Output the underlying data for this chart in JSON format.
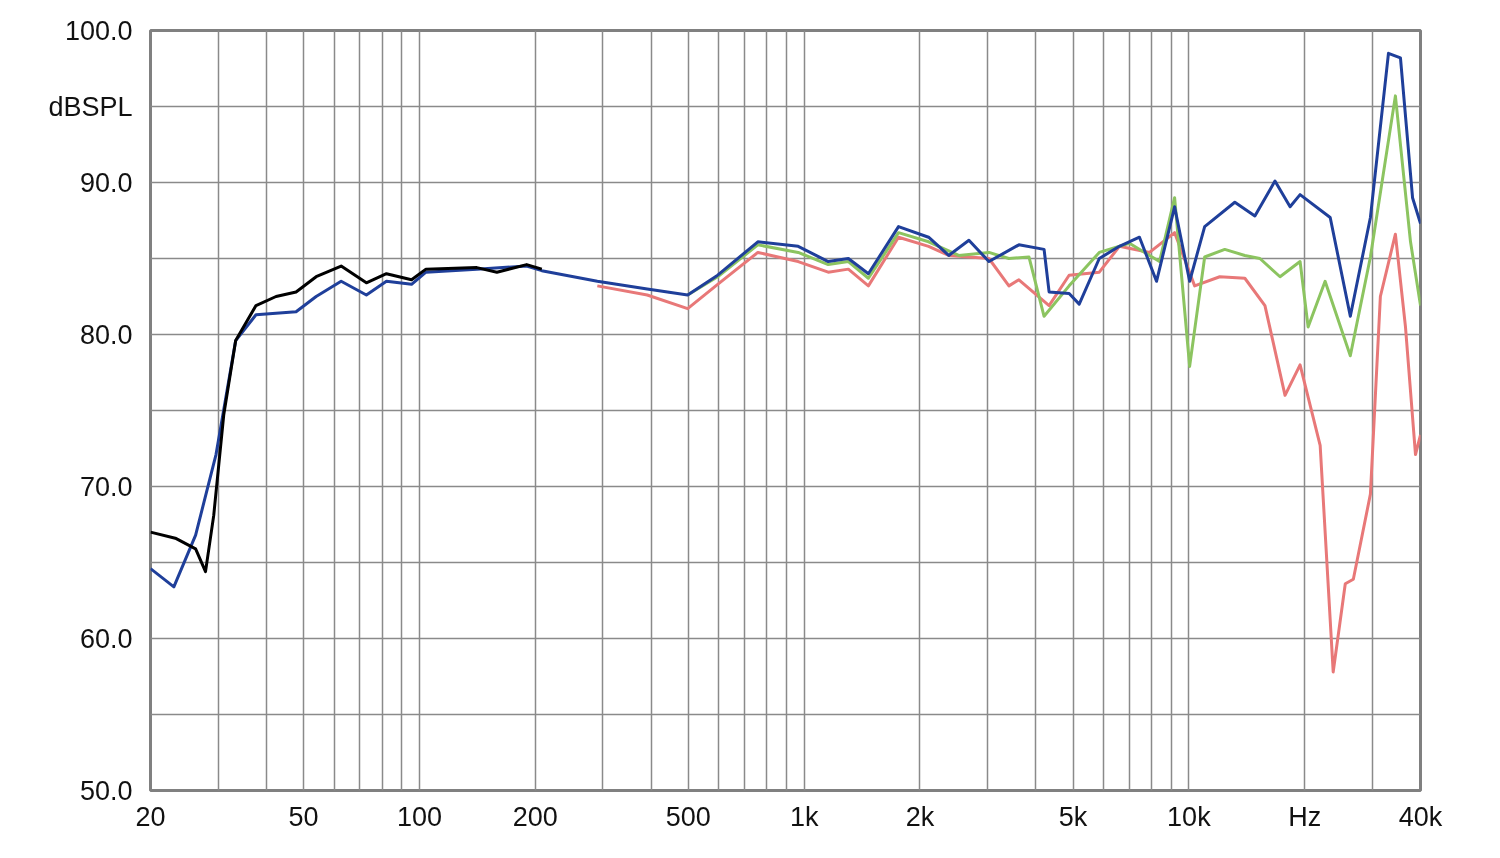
{
  "chart_data": {
    "type": "line",
    "log": "x",
    "grid": true,
    "xlim": [
      20,
      40000
    ],
    "ylim": [
      50,
      100
    ],
    "xticks": [
      20,
      {
        "value": 30,
        "label": null
      },
      {
        "value": 40,
        "label": null
      },
      50,
      {
        "value": 60,
        "label": null
      },
      {
        "value": 70,
        "label": null
      },
      {
        "value": 80,
        "label": null
      },
      {
        "value": 90,
        "label": null
      },
      100,
      200,
      {
        "value": 300,
        "label": null
      },
      {
        "value": 400,
        "label": null
      },
      500,
      {
        "value": 600,
        "label": null
      },
      {
        "value": 700,
        "label": null
      },
      {
        "value": 800,
        "label": null
      },
      {
        "value": 900,
        "label": null
      },
      {
        "value": 1000,
        "label": "1k"
      },
      {
        "value": 2000,
        "label": "2k"
      },
      {
        "value": 3000,
        "label": null
      },
      {
        "value": 4000,
        "label": null
      },
      {
        "value": 5000,
        "label": "5k"
      },
      {
        "value": 6000,
        "label": null
      },
      {
        "value": 7000,
        "label": null
      },
      {
        "value": 8000,
        "label": null
      },
      {
        "value": 9000,
        "label": null
      },
      {
        "value": 10000,
        "label": "10k"
      },
      {
        "value": 20000,
        "label": "Hz"
      },
      {
        "value": 30000,
        "label": null
      },
      {
        "value": 40000,
        "label": "40k"
      }
    ],
    "yticks": [
      {
        "value": 50,
        "label": "50.0"
      },
      {
        "value": 55,
        "label": null
      },
      {
        "value": 60,
        "label": "60.0"
      },
      {
        "value": 65,
        "label": null
      },
      {
        "value": 70,
        "label": "70.0"
      },
      {
        "value": 75,
        "label": null
      },
      {
        "value": 80,
        "label": "80.0"
      },
      {
        "value": 85,
        "label": null
      },
      {
        "value": 90,
        "label": "90.0"
      },
      {
        "value": 95,
        "label": "dBSPL"
      },
      {
        "value": 100,
        "label": "100.0"
      }
    ],
    "series": [
      {
        "color": "#e87878",
        "x": [
          290,
          391,
          498,
          596,
          758,
          965,
          1155,
          1303,
          1469,
          1759,
          2106,
          2376,
          3022,
          3406,
          3616,
          4332,
          4884,
          5850,
          6598,
          7902,
          9182,
          10352,
          12030,
          13980,
          15766,
          17780,
          19456,
          21940,
          23720,
          25500,
          26760,
          29640,
          31460,
          34420,
          36560,
          38820,
          40000
        ],
        "values": [
          83.2,
          82.6,
          81.7,
          83.3,
          85.4,
          84.8,
          84.1,
          84.3,
          83.2,
          86.4,
          85.8,
          85.2,
          85.0,
          83.2,
          83.6,
          81.9,
          83.9,
          84.1,
          85.8,
          85.4,
          86.7,
          83.2,
          83.8,
          83.7,
          81.9,
          76.0,
          78.0,
          72.7,
          57.8,
          63.6,
          63.9,
          69.5,
          82.5,
          86.6,
          80.5,
          72.1,
          73.4
        ]
      },
      {
        "color": "#8cc460",
        "x": [
          498,
          596,
          758,
          965,
          1155,
          1303,
          1469,
          1759,
          2106,
          2523,
          3022,
          3406,
          3840,
          4204,
          4884,
          5850,
          7006,
          8390,
          9182,
          10046,
          10992,
          12398,
          13980,
          15298,
          17256,
          19456,
          20414,
          22600,
          26280,
          29640,
          34420,
          37680,
          40000
        ],
        "values": [
          82.6,
          83.8,
          85.9,
          85.4,
          84.6,
          84.8,
          83.7,
          86.7,
          86.1,
          85.2,
          85.4,
          85.0,
          85.1,
          81.2,
          83.2,
          85.4,
          86.0,
          84.8,
          89.0,
          77.9,
          85.1,
          85.6,
          85.2,
          85.0,
          83.8,
          84.8,
          80.5,
          83.5,
          78.6,
          85.1,
          95.7,
          86.1,
          81.9
        ]
      },
      {
        "color": "#1f3f9a",
        "x": [
          20,
          23.0,
          26.2,
          29.6,
          33.3,
          37.6,
          47.8,
          53.9,
          62.6,
          72.8,
          82.1,
          95.4,
          104,
          141,
          190,
          208,
          290,
          391,
          498,
          596,
          758,
          965,
          1155,
          1303,
          1469,
          1759,
          2106,
          2376,
          2681,
          3022,
          3616,
          4204,
          4332,
          4884,
          5188,
          5850,
          6598,
          7440,
          8240,
          9182,
          10046,
          10992,
          13166,
          14846,
          16742,
          18326,
          19456,
          23300,
          26280,
          29640,
          33020,
          35480,
          38140,
          40000
        ],
        "values": [
          64.6,
          63.4,
          66.8,
          72.1,
          79.6,
          81.3,
          81.5,
          82.5,
          83.5,
          82.6,
          83.5,
          83.3,
          84.1,
          84.3,
          84.5,
          84.2,
          83.5,
          83.0,
          82.6,
          83.9,
          86.1,
          85.8,
          84.8,
          85.0,
          84.0,
          87.1,
          86.4,
          85.2,
          86.2,
          84.8,
          85.9,
          85.6,
          82.8,
          82.7,
          82.0,
          85.0,
          85.8,
          86.4,
          83.5,
          88.4,
          83.5,
          87.1,
          88.7,
          87.8,
          90.1,
          88.4,
          89.2,
          87.7,
          81.2,
          87.7,
          98.5,
          98.2,
          89.0,
          87.3
        ]
      },
      {
        "color": "#000000",
        "x": [
          20,
          23.2,
          26.2,
          27.8,
          29.2,
          31.0,
          33.3,
          37.6,
          42.4,
          47.8,
          53.9,
          62.6,
          72.8,
          82.1,
          95.4,
          104,
          141,
          159,
          190,
          208
        ],
        "values": [
          67.0,
          66.6,
          65.9,
          64.4,
          68.1,
          74.7,
          79.6,
          81.9,
          82.5,
          82.8,
          83.8,
          84.5,
          83.4,
          84.0,
          83.6,
          84.3,
          84.4,
          84.1,
          84.6,
          84.3
        ]
      }
    ]
  }
}
